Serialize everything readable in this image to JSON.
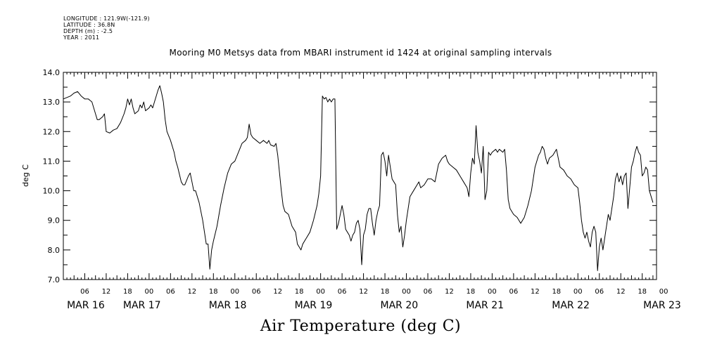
{
  "header": {
    "longitude": "LONGITUDE : 121.9W(-121.9)",
    "latitude": "LATITUDE : 36.8N",
    "depth": "DEPTH (m) : -2.5",
    "year": "YEAR : 2011"
  },
  "chart_data": {
    "type": "line",
    "title": "Mooring M0 Metsys data from MBARI instrument id 1424 at original sampling intervals",
    "xlabel": "Air Temperature (deg C)",
    "ylabel": "deg C",
    "ylim": [
      7.0,
      14.0
    ],
    "yticks": [
      "7.0",
      "8.0",
      "9.0",
      "10.0",
      "11.0",
      "12.0",
      "13.0",
      "14.0"
    ],
    "xlim_hours": [
      0,
      166
    ],
    "hour_tick_labels": [
      "06",
      "12",
      "18",
      "00",
      "06",
      "12",
      "18",
      "00",
      "06",
      "12",
      "18",
      "00",
      "06",
      "12",
      "18",
      "00",
      "06",
      "12",
      "18",
      "00",
      "06",
      "12",
      "18",
      "00",
      "06",
      "12",
      "18",
      "00"
    ],
    "day_labels": [
      "MAR 16",
      "MAR 17",
      "MAR 18",
      "MAR 19",
      "MAR 20",
      "MAR 21",
      "MAR 22",
      "MAR 23"
    ],
    "grid": false,
    "series": [
      {
        "points": [
          [
            0,
            13.1
          ],
          [
            1,
            13.15
          ],
          [
            2,
            13.2
          ],
          [
            3,
            13.3
          ],
          [
            4,
            13.35
          ],
          [
            5,
            13.2
          ],
          [
            6,
            13.1
          ],
          [
            7,
            13.1
          ],
          [
            8,
            13.0
          ],
          [
            9,
            12.6
          ],
          [
            9.5,
            12.4
          ],
          [
            10,
            12.4
          ],
          [
            11,
            12.5
          ],
          [
            11.5,
            12.6
          ],
          [
            12,
            12.0
          ],
          [
            13,
            11.95
          ],
          [
            14,
            12.05
          ],
          [
            15,
            12.1
          ],
          [
            16,
            12.3
          ],
          [
            17,
            12.6
          ],
          [
            17.5,
            12.8
          ],
          [
            18,
            13.1
          ],
          [
            18.5,
            12.9
          ],
          [
            19,
            13.1
          ],
          [
            19.5,
            12.8
          ],
          [
            20,
            12.6
          ],
          [
            21,
            12.7
          ],
          [
            21.5,
            12.9
          ],
          [
            22,
            12.8
          ],
          [
            22.5,
            13.0
          ],
          [
            23,
            12.7
          ],
          [
            24,
            12.8
          ],
          [
            24.5,
            12.9
          ],
          [
            25,
            12.8
          ],
          [
            25.5,
            13.0
          ],
          [
            26,
            13.2
          ],
          [
            26.5,
            13.4
          ],
          [
            27,
            13.55
          ],
          [
            27.5,
            13.3
          ],
          [
            28,
            13.0
          ],
          [
            28.5,
            12.4
          ],
          [
            29,
            12.0
          ],
          [
            30,
            11.7
          ],
          [
            31,
            11.3
          ],
          [
            31.5,
            11.0
          ],
          [
            32,
            10.8
          ],
          [
            33,
            10.3
          ],
          [
            33.5,
            10.2
          ],
          [
            34,
            10.2
          ],
          [
            35,
            10.5
          ],
          [
            35.5,
            10.6
          ],
          [
            36,
            10.3
          ],
          [
            36.5,
            10.0
          ],
          [
            37,
            10.0
          ],
          [
            38,
            9.6
          ],
          [
            38.5,
            9.3
          ],
          [
            39,
            9.0
          ],
          [
            39.5,
            8.6
          ],
          [
            40,
            8.2
          ],
          [
            40.5,
            8.2
          ],
          [
            41,
            7.35
          ],
          [
            41.5,
            8.0
          ],
          [
            42,
            8.3
          ],
          [
            43,
            8.8
          ],
          [
            44,
            9.5
          ],
          [
            45,
            10.1
          ],
          [
            46,
            10.6
          ],
          [
            47,
            10.9
          ],
          [
            48,
            11.0
          ],
          [
            49,
            11.3
          ],
          [
            50,
            11.6
          ],
          [
            51,
            11.7
          ],
          [
            51.5,
            11.8
          ],
          [
            52,
            12.25
          ],
          [
            52.5,
            11.9
          ],
          [
            53,
            11.8
          ],
          [
            54,
            11.7
          ],
          [
            55,
            11.6
          ],
          [
            56,
            11.7
          ],
          [
            57,
            11.6
          ],
          [
            57.5,
            11.7
          ],
          [
            58,
            11.55
          ],
          [
            59,
            11.5
          ],
          [
            59.5,
            11.6
          ],
          [
            60,
            11.2
          ],
          [
            60.5,
            10.6
          ],
          [
            61,
            10.0
          ],
          [
            61.5,
            9.5
          ],
          [
            62,
            9.3
          ],
          [
            63,
            9.2
          ],
          [
            63.5,
            9.0
          ],
          [
            64,
            8.8
          ],
          [
            65,
            8.6
          ],
          [
            65.5,
            8.2
          ],
          [
            66,
            8.1
          ],
          [
            66.5,
            8.0
          ],
          [
            67,
            8.2
          ],
          [
            68,
            8.4
          ],
          [
            69,
            8.6
          ],
          [
            70,
            9.0
          ],
          [
            71,
            9.5
          ],
          [
            71.5,
            9.9
          ],
          [
            72,
            10.5
          ],
          [
            72.5,
            13.2
          ],
          [
            73,
            13.1
          ],
          [
            73.5,
            13.15
          ],
          [
            74,
            13.0
          ],
          [
            74.5,
            13.1
          ],
          [
            75,
            13.0
          ],
          [
            75.5,
            13.1
          ],
          [
            76,
            13.1
          ],
          [
            76.5,
            8.7
          ],
          [
            77,
            8.9
          ],
          [
            77.5,
            9.2
          ],
          [
            78,
            9.5
          ],
          [
            78.5,
            9.2
          ],
          [
            79,
            8.7
          ],
          [
            79.5,
            8.6
          ],
          [
            80,
            8.5
          ],
          [
            80.5,
            8.3
          ],
          [
            81,
            8.5
          ],
          [
            81.5,
            8.6
          ],
          [
            82,
            8.9
          ],
          [
            82.5,
            9.0
          ],
          [
            83,
            8.7
          ],
          [
            83.5,
            7.5
          ],
          [
            84,
            8.5
          ],
          [
            84.5,
            8.7
          ],
          [
            85,
            9.2
          ],
          [
            85.5,
            9.4
          ],
          [
            86,
            9.4
          ],
          [
            86.5,
            8.9
          ],
          [
            87,
            8.5
          ],
          [
            87.5,
            9.0
          ],
          [
            88,
            9.3
          ],
          [
            88.5,
            9.5
          ],
          [
            89,
            11.2
          ],
          [
            89.5,
            11.3
          ],
          [
            90,
            11.0
          ],
          [
            90.5,
            10.5
          ],
          [
            91,
            11.2
          ],
          [
            91.5,
            10.8
          ],
          [
            92,
            10.4
          ],
          [
            92.5,
            10.3
          ],
          [
            93,
            10.2
          ],
          [
            93.5,
            9.2
          ],
          [
            94,
            8.6
          ],
          [
            94.5,
            8.8
          ],
          [
            95,
            8.1
          ],
          [
            95.5,
            8.5
          ],
          [
            96,
            9.0
          ],
          [
            96.5,
            9.4
          ],
          [
            97,
            9.8
          ],
          [
            98,
            10.0
          ],
          [
            99,
            10.2
          ],
          [
            99.5,
            10.3
          ],
          [
            100,
            10.1
          ],
          [
            101,
            10.2
          ],
          [
            102,
            10.4
          ],
          [
            103,
            10.4
          ],
          [
            104,
            10.3
          ],
          [
            105,
            10.9
          ],
          [
            106,
            11.1
          ],
          [
            107,
            11.2
          ],
          [
            107.5,
            11.0
          ],
          [
            108,
            10.9
          ],
          [
            109,
            10.8
          ],
          [
            110,
            10.7
          ],
          [
            111,
            10.5
          ],
          [
            112,
            10.3
          ],
          [
            113,
            10.1
          ],
          [
            113.5,
            9.8
          ],
          [
            114,
            10.6
          ],
          [
            114.5,
            11.1
          ],
          [
            115,
            10.9
          ],
          [
            115.5,
            12.2
          ],
          [
            116,
            11.3
          ],
          [
            116.5,
            11.0
          ],
          [
            117,
            10.6
          ],
          [
            117.5,
            11.5
          ],
          [
            118,
            9.7
          ],
          [
            118.5,
            10.0
          ],
          [
            119,
            11.3
          ],
          [
            119.5,
            11.2
          ],
          [
            120,
            11.3
          ],
          [
            121,
            11.4
          ],
          [
            121.5,
            11.3
          ],
          [
            122,
            11.4
          ],
          [
            123,
            11.3
          ],
          [
            123.5,
            11.4
          ],
          [
            124,
            10.7
          ],
          [
            124.5,
            9.7
          ],
          [
            125,
            9.4
          ],
          [
            126,
            9.2
          ],
          [
            127,
            9.1
          ],
          [
            127.5,
            9.0
          ],
          [
            128,
            8.9
          ],
          [
            129,
            9.1
          ],
          [
            130,
            9.5
          ],
          [
            131,
            10.0
          ],
          [
            132,
            10.8
          ],
          [
            133,
            11.2
          ],
          [
            133.5,
            11.3
          ],
          [
            134,
            11.5
          ],
          [
            134.5,
            11.4
          ],
          [
            135,
            11.1
          ],
          [
            135.5,
            10.9
          ],
          [
            136,
            11.1
          ],
          [
            137,
            11.2
          ],
          [
            138,
            11.4
          ],
          [
            138.5,
            11.1
          ],
          [
            139,
            10.8
          ],
          [
            140,
            10.7
          ],
          [
            141,
            10.5
          ],
          [
            142,
            10.4
          ],
          [
            143,
            10.2
          ],
          [
            144,
            10.1
          ],
          [
            144.5,
            9.6
          ],
          [
            145,
            9.0
          ],
          [
            145.5,
            8.6
          ],
          [
            146,
            8.4
          ],
          [
            146.5,
            8.6
          ],
          [
            147,
            8.3
          ],
          [
            147.5,
            8.1
          ],
          [
            148,
            8.6
          ],
          [
            148.5,
            8.8
          ],
          [
            149,
            8.6
          ],
          [
            149.5,
            7.3
          ],
          [
            150,
            8.1
          ],
          [
            150.5,
            8.4
          ],
          [
            151,
            8.0
          ],
          [
            151.5,
            8.4
          ],
          [
            152,
            8.8
          ],
          [
            152.5,
            9.2
          ],
          [
            153,
            9.0
          ],
          [
            153.5,
            9.4
          ],
          [
            154,
            9.8
          ],
          [
            154.5,
            10.4
          ],
          [
            155,
            10.6
          ],
          [
            155.5,
            10.3
          ],
          [
            156,
            10.5
          ],
          [
            156.5,
            10.2
          ],
          [
            157,
            10.5
          ],
          [
            157.5,
            10.6
          ],
          [
            158,
            9.4
          ],
          [
            158.5,
            10.1
          ],
          [
            159,
            10.8
          ],
          [
            159.5,
            11.0
          ],
          [
            160,
            11.3
          ],
          [
            160.5,
            11.5
          ],
          [
            161,
            11.3
          ],
          [
            161.5,
            11.2
          ],
          [
            162,
            10.5
          ],
          [
            162.5,
            10.6
          ],
          [
            163,
            10.8
          ],
          [
            163.5,
            10.7
          ],
          [
            164,
            10.0
          ],
          [
            165,
            9.6
          ]
        ]
      }
    ]
  }
}
